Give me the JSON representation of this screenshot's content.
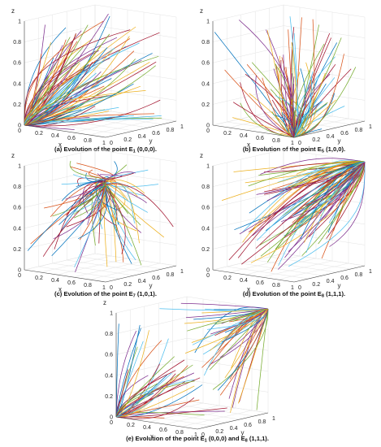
{
  "figure": {
    "palette": [
      "#0072BD",
      "#D95319",
      "#EDB120",
      "#7E2F8E",
      "#77AC30",
      "#4DBEEE",
      "#A2142F"
    ],
    "panels": [
      {
        "id": "a",
        "caption": {
          "pre": "(a) Evolution of the point E",
          "sub": "1",
          "post": " (0,0,0)."
        },
        "z_label": "z",
        "x_label": "x",
        "y_label": "y",
        "z_ticks": [
          "0",
          "0.2",
          "0.4",
          "0.6",
          "0.8",
          "1"
        ],
        "x_ticks": [
          "0.2",
          "0.4",
          "0.6",
          "0.8",
          "1"
        ],
        "y_ticks": [
          "0",
          "0.2",
          "0.4",
          "0.6",
          "0.8",
          "1"
        ],
        "origin_label": "0",
        "chart_data": {
          "type": "line",
          "dimensions": 3,
          "description_of_dynamics": "trajectories converge to point E1",
          "equilibrium": {
            "label": "E1",
            "x": 0,
            "y": 0,
            "z": 0
          },
          "xlim": [
            0,
            1
          ],
          "ylim": [
            0,
            1
          ],
          "zlim": [
            0,
            1
          ],
          "trajectory_count": 90,
          "grid": true
        }
      },
      {
        "id": "b",
        "caption": {
          "pre": "(b) Evolution of the point E",
          "sub": "5",
          "post": " (1,0,0)."
        },
        "z_label": "z",
        "x_label": "x",
        "y_label": "y",
        "z_ticks": [
          "0",
          "0.2",
          "0.4",
          "0.6",
          "0.8",
          "1"
        ],
        "x_ticks": [
          "0.2",
          "0.4",
          "0.6",
          "0.8",
          "1"
        ],
        "y_ticks": [
          "0",
          "0.2",
          "0.4",
          "0.6",
          "0.8",
          "1"
        ],
        "origin_label": "0",
        "chart_data": {
          "type": "line",
          "dimensions": 3,
          "equilibrium": {
            "label": "E5",
            "x": 1,
            "y": 0,
            "z": 0
          },
          "xlim": [
            0,
            1
          ],
          "ylim": [
            0,
            1
          ],
          "zlim": [
            0,
            1
          ],
          "trajectory_count": 90,
          "grid": true
        }
      },
      {
        "id": "c",
        "caption": {
          "pre": "(c) Evolution of the point E",
          "sub": "7",
          "post": " (1,0,1)."
        },
        "z_label": "z",
        "x_label": "x",
        "y_label": "y",
        "z_ticks": [
          "0",
          "0.2",
          "0.4",
          "0.6",
          "0.8",
          "1"
        ],
        "x_ticks": [
          "0.2",
          "0.4",
          "0.6",
          "0.8",
          "1"
        ],
        "y_ticks": [
          "0",
          "0.2",
          "0.4",
          "0.6",
          "0.8",
          "1"
        ],
        "origin_label": "0",
        "chart_data": {
          "type": "line",
          "dimensions": 3,
          "equilibrium": {
            "label": "E7",
            "x": 1,
            "y": 0,
            "z": 1
          },
          "xlim": [
            0,
            1
          ],
          "ylim": [
            0,
            1
          ],
          "zlim": [
            0,
            1
          ],
          "trajectory_count": 90,
          "grid": true
        }
      },
      {
        "id": "d",
        "caption": {
          "pre": "(d) Evolution of the point E",
          "sub": "8",
          "post": " (1,1,1)."
        },
        "z_label": "z",
        "x_label": "x",
        "y_label": "y",
        "z_ticks": [
          "0",
          "0.2",
          "0.4",
          "0.6",
          "0.8",
          "1"
        ],
        "x_ticks": [
          "0.2",
          "0.4",
          "0.6",
          "0.8",
          "1"
        ],
        "y_ticks": [
          "0",
          "0.2",
          "0.4",
          "0.6",
          "0.8",
          "1"
        ],
        "origin_label": "0",
        "chart_data": {
          "type": "line",
          "dimensions": 3,
          "equilibrium": {
            "label": "E8",
            "x": 1,
            "y": 1,
            "z": 1
          },
          "xlim": [
            0,
            1
          ],
          "ylim": [
            0,
            1
          ],
          "zlim": [
            0,
            1
          ],
          "trajectory_count": 90,
          "grid": true
        }
      },
      {
        "id": "e",
        "caption": {
          "pre": "(e) Evolution of the point E",
          "sub": "1",
          "post": " (0,0,0) and E",
          "sub2": "8",
          "post2": " (1,1,1)."
        },
        "z_label": "z",
        "x_label": "x",
        "y_label": "y",
        "z_ticks": [
          "0",
          "0.2",
          "0.4",
          "0.6",
          "0.8",
          "1"
        ],
        "x_ticks": [
          "0.2",
          "0.4",
          "0.6",
          "0.8",
          "1"
        ],
        "y_ticks": [
          "0",
          "0.2",
          "0.4",
          "0.6",
          "0.8",
          "1"
        ],
        "origin_label": "0",
        "chart_data": {
          "type": "line",
          "dimensions": 3,
          "equilibria": [
            {
              "label": "E1",
              "x": 0,
              "y": 0,
              "z": 0
            },
            {
              "label": "E8",
              "x": 1,
              "y": 1,
              "z": 1
            }
          ],
          "xlim": [
            0,
            1
          ],
          "ylim": [
            0,
            1
          ],
          "zlim": [
            0,
            1
          ],
          "trajectory_count": 90,
          "grid": true
        }
      }
    ]
  }
}
